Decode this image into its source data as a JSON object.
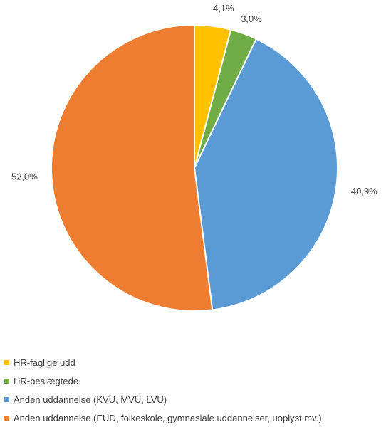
{
  "chart_data": {
    "type": "pie",
    "title": "",
    "series": [
      {
        "name": "",
        "slices": [
          {
            "label": "HR-faglige udd",
            "value": 4.1,
            "display": "4,1%",
            "color": "#FFC000"
          },
          {
            "label": "HR-beslægtede",
            "value": 3.0,
            "display": "3,0%",
            "color": "#70AD47"
          },
          {
            "label": "Anden uddannelse (KVU, MVU, LVU)",
            "value": 40.9,
            "display": "40,9%",
            "color": "#5B9BD5"
          },
          {
            "label": "Anden uddannelse (EUD, folkeskole, gymnasiale uddannelser, uoplyst mv.)",
            "value": 52.0,
            "display": "52,0%",
            "color": "#ED7D31"
          }
        ]
      }
    ],
    "legend_position": "bottom-left",
    "start_angle_deg": 0,
    "direction": "clockwise"
  }
}
